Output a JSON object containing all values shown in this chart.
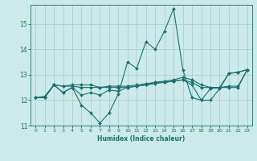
{
  "title": "",
  "xlabel": "Humidex (Indice chaleur)",
  "background_color": "#cceaea",
  "grid_color": "#aacfcf",
  "line_color": "#1a7070",
  "x_values": [
    0,
    1,
    2,
    3,
    4,
    5,
    6,
    7,
    8,
    9,
    10,
    11,
    12,
    13,
    14,
    15,
    16,
    17,
    18,
    19,
    20,
    21,
    22,
    23
  ],
  "lines": {
    "line1": [
      12.1,
      12.1,
      12.6,
      12.3,
      12.5,
      11.8,
      11.5,
      11.1,
      11.5,
      12.25,
      13.5,
      13.25,
      14.3,
      14.0,
      14.7,
      15.6,
      13.2,
      12.1,
      12.0,
      12.0,
      12.45,
      13.05,
      13.1,
      13.2
    ],
    "line2": [
      12.1,
      12.1,
      12.6,
      12.55,
      12.55,
      12.5,
      12.5,
      12.5,
      12.5,
      12.5,
      12.5,
      12.55,
      12.6,
      12.65,
      12.7,
      12.75,
      12.8,
      12.7,
      12.5,
      12.5,
      12.5,
      12.55,
      12.55,
      13.2
    ],
    "line3": [
      12.1,
      12.15,
      12.6,
      12.55,
      12.6,
      12.6,
      12.6,
      12.5,
      12.55,
      12.55,
      12.55,
      12.6,
      12.65,
      12.7,
      12.75,
      12.8,
      12.9,
      12.8,
      12.6,
      12.5,
      12.5,
      13.05,
      13.1,
      13.2
    ],
    "line4": [
      12.1,
      12.1,
      12.6,
      12.3,
      12.5,
      12.2,
      12.3,
      12.2,
      12.4,
      12.35,
      12.5,
      12.55,
      12.6,
      12.7,
      12.7,
      12.75,
      12.8,
      12.6,
      12.0,
      12.45,
      12.5,
      12.5,
      12.5,
      13.2
    ]
  },
  "xlim": [
    -0.5,
    23.5
  ],
  "ylim": [
    11.0,
    15.75
  ],
  "yticks": [
    11,
    12,
    13,
    14,
    15
  ],
  "xticks": [
    0,
    1,
    2,
    3,
    4,
    5,
    6,
    7,
    8,
    9,
    10,
    11,
    12,
    13,
    14,
    15,
    16,
    17,
    18,
    19,
    20,
    21,
    22,
    23
  ],
  "figsize": [
    3.2,
    2.0
  ],
  "dpi": 100
}
